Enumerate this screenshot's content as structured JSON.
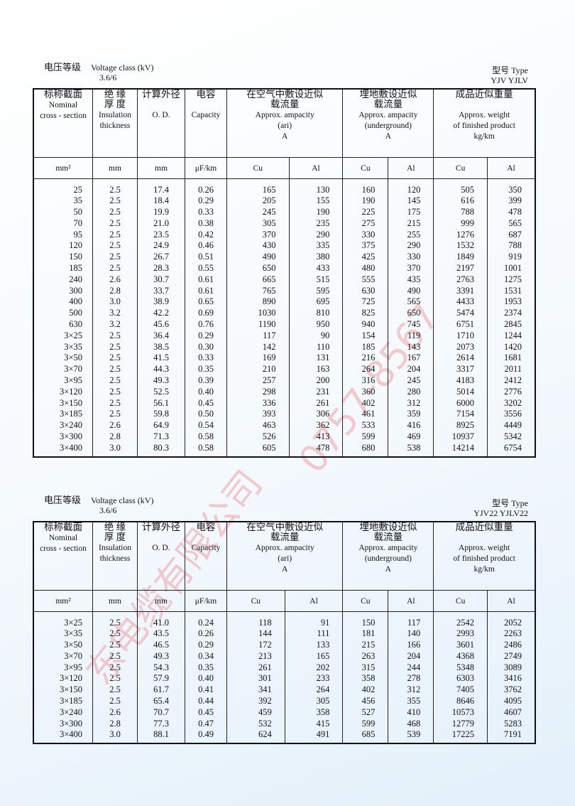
{
  "tables": [
    {
      "voltage_cn": "电压等级",
      "voltage_en": "Voltage class (kV)",
      "voltage_value": "3.6/6",
      "type_label": "型号  Type",
      "type_value": "YJV  YJLV",
      "rows": [
        [
          "25",
          "2.5",
          "17.4",
          "0.26",
          "165",
          "130",
          "160",
          "120",
          "505",
          "350"
        ],
        [
          "35",
          "2.5",
          "18.4",
          "0.29",
          "205",
          "155",
          "190",
          "145",
          "616",
          "399"
        ],
        [
          "50",
          "2.5",
          "19.9",
          "0.33",
          "245",
          "190",
          "225",
          "175",
          "788",
          "478"
        ],
        [
          "70",
          "2.5",
          "21.0",
          "0.38",
          "305",
          "235",
          "275",
          "215",
          "999",
          "565"
        ],
        [
          "95",
          "2.5",
          "23.5",
          "0.42",
          "370",
          "290",
          "330",
          "255",
          "1276",
          "687"
        ],
        [
          "120",
          "2.5",
          "24.9",
          "0.46",
          "430",
          "335",
          "375",
          "290",
          "1532",
          "788"
        ],
        [
          "150",
          "2.5",
          "26.7",
          "0.51",
          "490",
          "380",
          "425",
          "330",
          "1849",
          "919"
        ],
        [
          "185",
          "2.5",
          "28.3",
          "0.55",
          "650",
          "433",
          "480",
          "370",
          "2197",
          "1001"
        ],
        [
          "240",
          "2.6",
          "30.7",
          "0.61",
          "665",
          "515",
          "555",
          "435",
          "2763",
          "1275"
        ],
        [
          "300",
          "2.8",
          "33.7",
          "0.61",
          "765",
          "595",
          "630",
          "490",
          "3391",
          "1531"
        ],
        [
          "400",
          "3.0",
          "38.9",
          "0.65",
          "890",
          "695",
          "725",
          "565",
          "4433",
          "1953"
        ],
        [
          "500",
          "3.2",
          "42.2",
          "0.69",
          "1030",
          "810",
          "825",
          "650",
          "5474",
          "2374"
        ],
        [
          "630",
          "3.2",
          "45.6",
          "0.76",
          "1190",
          "950",
          "940",
          "745",
          "6751",
          "2845"
        ],
        [
          "3×25",
          "2.5",
          "36.4",
          "0.29",
          "117",
          "90",
          "154",
          "119",
          "1710",
          "1244"
        ],
        [
          "3×35",
          "2.5",
          "38.5",
          "0.30",
          "142",
          "110",
          "185",
          "143",
          "2073",
          "1420"
        ],
        [
          "3×50",
          "2.5",
          "41.5",
          "0.33",
          "169",
          "131",
          "216",
          "167",
          "2614",
          "1681"
        ],
        [
          "3×70",
          "2.5",
          "44.3",
          "0.35",
          "210",
          "163",
          "264",
          "204",
          "3317",
          "2011"
        ],
        [
          "3×95",
          "2.5",
          "49.3",
          "0.39",
          "257",
          "200",
          "316",
          "245",
          "4183",
          "2412"
        ],
        [
          "3×120",
          "2.5",
          "52.5",
          "0.40",
          "298",
          "231",
          "360",
          "280",
          "5014",
          "2776"
        ],
        [
          "3×150",
          "2.5",
          "56.1",
          "0.45",
          "336",
          "261",
          "402",
          "312",
          "6000",
          "3202"
        ],
        [
          "3×185",
          "2.5",
          "59.8",
          "0.50",
          "393",
          "306",
          "461",
          "359",
          "7154",
          "3556"
        ],
        [
          "3×240",
          "2.6",
          "64.9",
          "0.54",
          "463",
          "362",
          "533",
          "416",
          "8925",
          "4449"
        ],
        [
          "3×300",
          "2.8",
          "71.3",
          "0.58",
          "526",
          "413",
          "599",
          "469",
          "10937",
          "5342"
        ],
        [
          "3×400",
          "3.0",
          "80.3",
          "0.58",
          "605",
          "478",
          "680",
          "538",
          "14214",
          "6754"
        ]
      ]
    },
    {
      "voltage_cn": "电压等级",
      "voltage_en": "Voltage class (kV)",
      "voltage_value": "3.6/6",
      "type_label": "型号  Type",
      "type_value": "YJV22  YJLV22",
      "rows": [
        [
          "3×25",
          "2.5",
          "41.0",
          "0.24",
          "118",
          "91",
          "150",
          "117",
          "2542",
          "2052"
        ],
        [
          "3×35",
          "2.5",
          "43.5",
          "0.26",
          "144",
          "111",
          "181",
          "140",
          "2993",
          "2263"
        ],
        [
          "3×50",
          "2.5",
          "46.5",
          "0.29",
          "172",
          "133",
          "215",
          "166",
          "3601",
          "2486"
        ],
        [
          "3×70",
          "2.5",
          "49.3",
          "0.34",
          "213",
          "165",
          "263",
          "204",
          "4368",
          "2749"
        ],
        [
          "3×95",
          "2.5",
          "54.3",
          "0.35",
          "261",
          "202",
          "315",
          "244",
          "5348",
          "3089"
        ],
        [
          "3×120",
          "2.5",
          "57.9",
          "0.40",
          "301",
          "233",
          "358",
          "278",
          "6303",
          "3416"
        ],
        [
          "3×150",
          "2.5",
          "61.7",
          "0.41",
          "341",
          "264",
          "402",
          "312",
          "7405",
          "3762"
        ],
        [
          "3×185",
          "2.5",
          "65.4",
          "0.44",
          "392",
          "305",
          "456",
          "355",
          "8646",
          "4095"
        ],
        [
          "3×240",
          "2.6",
          "70.7",
          "0.45",
          "459",
          "358",
          "527",
          "410",
          "10573",
          "4607"
        ],
        [
          "3×300",
          "2.8",
          "77.3",
          "0.47",
          "532",
          "415",
          "599",
          "468",
          "12779",
          "5283"
        ],
        [
          "3×400",
          "3.0",
          "88.1",
          "0.49",
          "624",
          "491",
          "685",
          "539",
          "17225",
          "7191"
        ]
      ]
    }
  ],
  "columns": {
    "section_cn": "标称截面",
    "section_en1": "Nominal",
    "section_en2": "cross - section",
    "ins_cn1": "绝  缘",
    "ins_cn2": "厚  度",
    "ins_en1": "Insulation",
    "ins_en2": "thickness",
    "od_cn": "计算外径",
    "od_en": "O. D.",
    "cap_cn": "电容",
    "cap_en": "Capacity",
    "air_cn1": "在空气中敷设近似",
    "air_cn2": "载流量",
    "air_en1": "Approx. ampacity",
    "air_en2": "(ari)",
    "air_en3": "A",
    "ug_cn1": "埋地敷设近似",
    "ug_cn2": "载流量",
    "ug_en1": "Approx. ampacity",
    "ug_en2": "(underground)",
    "ug_en3": "A",
    "wt_cn": "成品近似重量",
    "wt_en1": "Approx. weight",
    "wt_en2": "of finished product",
    "wt_en3": "kg/km",
    "unit_mm2": "mm²",
    "unit_mm": "mm",
    "unit_mm_b": "mm",
    "unit_cap": "μF/km",
    "cu": "Cu",
    "al": "Al"
  },
  "colors": {
    "watermark": "#e63c3c",
    "background_tint": "#e3f0fa"
  }
}
